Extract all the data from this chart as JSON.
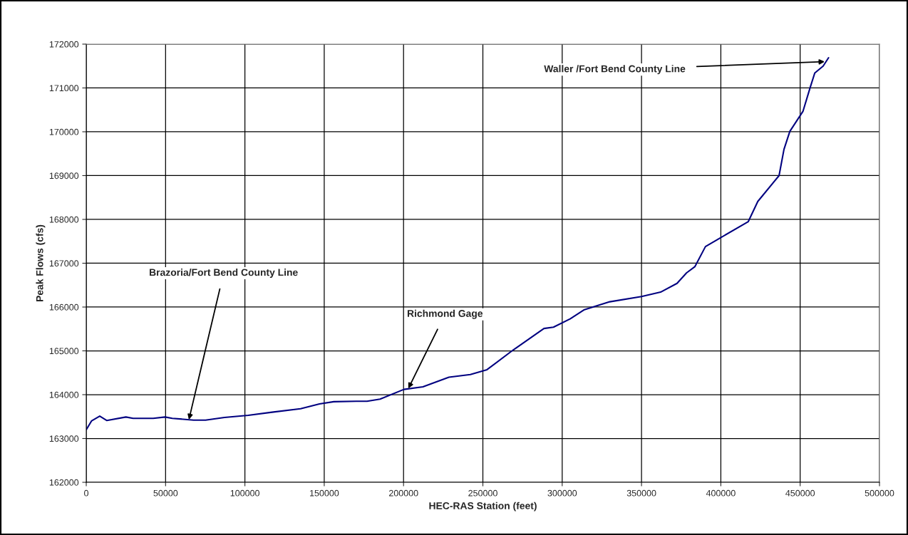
{
  "chart_data": {
    "type": "line",
    "xlabel": "HEC-RAS Station (feet)",
    "ylabel": "Peak Flows (cfs)",
    "xlim": [
      0,
      500000
    ],
    "xticks": [
      0,
      50000,
      100000,
      150000,
      200000,
      250000,
      300000,
      350000,
      400000,
      450000,
      500000
    ],
    "ylim": [
      162000,
      172000
    ],
    "yticks": [
      162000,
      163000,
      164000,
      165000,
      166000,
      167000,
      168000,
      169000,
      170000,
      171000,
      172000
    ],
    "grid": true,
    "legend": false,
    "marker": "none",
    "line_style": "solid",
    "series": [
      {
        "color": "#000080",
        "x": [
          0,
          3300,
          8500,
          13000,
          25000,
          29500,
          42200,
          49700,
          54200,
          67700,
          75200,
          87100,
          102100,
          117100,
          135100,
          147000,
          156000,
          170200,
          177000,
          185200,
          200200,
          212200,
          228600,
          242100,
          252600,
          269100,
          288500,
          294500,
          305000,
          314000,
          330000,
          350000,
          362000,
          372400,
          378400,
          383600,
          390300,
          397800,
          417300,
          423300,
          436700,
          439800,
          443500,
          451800,
          456300,
          459200,
          464500,
          467900
        ],
        "values": [
          163200,
          163400,
          163510,
          163410,
          163490,
          163460,
          163460,
          163490,
          163460,
          163420,
          163420,
          163480,
          163530,
          163600,
          163680,
          163790,
          163840,
          163850,
          163850,
          163900,
          164120,
          164180,
          164400,
          164460,
          164570,
          165020,
          165510,
          165540,
          165730,
          165940,
          166120,
          166240,
          166340,
          166540,
          166780,
          166920,
          167380,
          167540,
          167950,
          168410,
          169000,
          169600,
          170010,
          170470,
          171010,
          171340,
          171500,
          171690
        ]
      }
    ],
    "annotations": [
      {
        "text": "Brazoria/Fort Bend County Line",
        "x": 64700,
        "y": 163430
      },
      {
        "text": "Richmond Gage",
        "x": 203000,
        "y": 164140
      },
      {
        "text": "Waller /Fort Bend County Line",
        "x": 465400,
        "y": 171600
      }
    ]
  }
}
